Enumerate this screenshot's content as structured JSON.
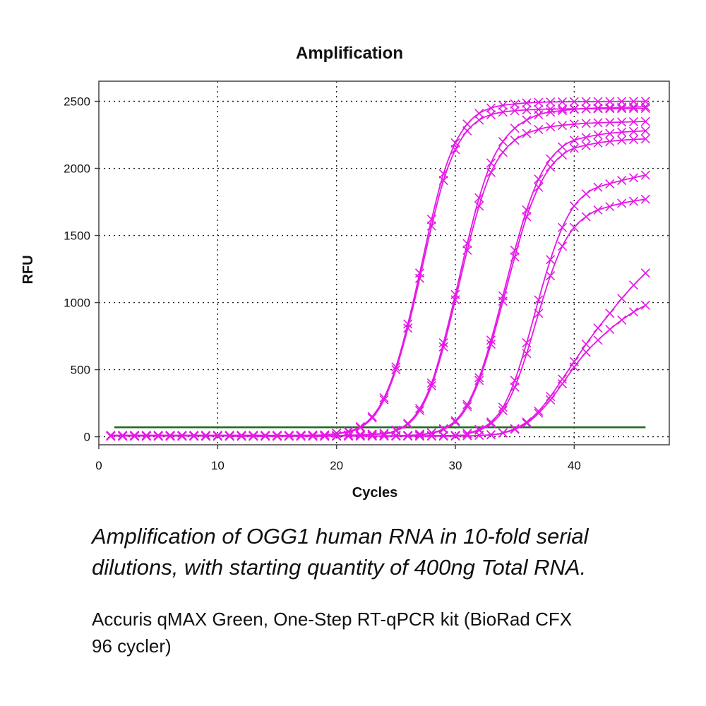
{
  "chart_data": {
    "type": "line",
    "title": "Amplification",
    "xlabel": "Cycles",
    "ylabel": "RFU",
    "xlim": [
      0,
      48
    ],
    "ylim": [
      -60,
      2650
    ],
    "xticks": [
      0,
      10,
      20,
      30,
      40
    ],
    "yticks": [
      0,
      500,
      1000,
      1500,
      2000,
      2500
    ],
    "grid": true,
    "threshold": 70,
    "threshold_color": "#1a6b1a",
    "series_color": "#e619e6",
    "series": [
      {
        "x": [
          1,
          4,
          7,
          10,
          13,
          16,
          19,
          21,
          22,
          23,
          24,
          25,
          26,
          27,
          28,
          29,
          30,
          31,
          32,
          33,
          34,
          35,
          36,
          37,
          38,
          40,
          42,
          44,
          46
        ],
        "values": [
          10,
          10,
          10,
          10,
          10,
          10,
          14,
          40,
          75,
          150,
          290,
          520,
          840,
          1220,
          1620,
          1960,
          2190,
          2330,
          2410,
          2450,
          2470,
          2480,
          2488,
          2492,
          2495,
          2497,
          2498,
          2499,
          2500
        ]
      },
      {
        "x": [
          1,
          4,
          7,
          10,
          13,
          16,
          19,
          21,
          22,
          23,
          24,
          25,
          26,
          27,
          28,
          29,
          30,
          31,
          32,
          33,
          34,
          35,
          36,
          37,
          38,
          40,
          42,
          44,
          46
        ],
        "values": [
          10,
          10,
          10,
          10,
          10,
          10,
          13,
          36,
          68,
          140,
          275,
          500,
          810,
          1180,
          1570,
          1910,
          2140,
          2280,
          2360,
          2400,
          2420,
          2430,
          2436,
          2440,
          2442,
          2444,
          2445,
          2446,
          2447
        ]
      },
      {
        "x": [
          1,
          5,
          10,
          15,
          20,
          24,
          25,
          26,
          27,
          28,
          29,
          30,
          31,
          32,
          33,
          34,
          35,
          36,
          37,
          38,
          40,
          42,
          44,
          46
        ],
        "values": [
          5,
          5,
          5,
          5,
          8,
          25,
          50,
          100,
          210,
          400,
          700,
          1060,
          1440,
          1780,
          2040,
          2200,
          2300,
          2360,
          2400,
          2420,
          2440,
          2450,
          2455,
          2460
        ]
      },
      {
        "x": [
          1,
          5,
          10,
          15,
          20,
          24,
          25,
          26,
          27,
          28,
          29,
          30,
          31,
          32,
          33,
          34,
          35,
          36,
          37,
          38,
          40,
          42,
          44,
          46
        ],
        "values": [
          5,
          5,
          5,
          5,
          8,
          22,
          45,
          92,
          195,
          380,
          670,
          1020,
          1390,
          1720,
          1970,
          2120,
          2210,
          2260,
          2290,
          2310,
          2330,
          2340,
          2345,
          2350
        ]
      },
      {
        "x": [
          1,
          10,
          20,
          26,
          28,
          29,
          30,
          31,
          32,
          33,
          34,
          35,
          36,
          37,
          38,
          39,
          40,
          42,
          44,
          46
        ],
        "values": [
          5,
          5,
          5,
          10,
          30,
          60,
          120,
          240,
          440,
          720,
          1050,
          1390,
          1690,
          1920,
          2070,
          2160,
          2210,
          2250,
          2270,
          2280
        ]
      },
      {
        "x": [
          1,
          10,
          20,
          26,
          28,
          29,
          30,
          31,
          32,
          33,
          34,
          35,
          36,
          37,
          38,
          39,
          40,
          42,
          44,
          46
        ],
        "values": [
          5,
          5,
          5,
          9,
          27,
          55,
          110,
          225,
          420,
          690,
          1010,
          1340,
          1640,
          1860,
          2010,
          2100,
          2150,
          2190,
          2210,
          2220
        ]
      },
      {
        "x": [
          1,
          10,
          20,
          30,
          31,
          32,
          33,
          34,
          35,
          36,
          37,
          38,
          39,
          40,
          41,
          42,
          44,
          46
        ],
        "values": [
          5,
          5,
          5,
          10,
          25,
          55,
          110,
          220,
          420,
          700,
          1020,
          1320,
          1560,
          1720,
          1810,
          1860,
          1910,
          1950
        ]
      },
      {
        "x": [
          1,
          10,
          20,
          30,
          31,
          32,
          33,
          34,
          35,
          36,
          37,
          38,
          39,
          40,
          41,
          42,
          44,
          46
        ],
        "values": [
          5,
          5,
          5,
          9,
          22,
          48,
          98,
          195,
          370,
          620,
          920,
          1200,
          1420,
          1560,
          1640,
          1690,
          1740,
          1770
        ]
      },
      {
        "x": [
          1,
          10,
          20,
          30,
          33,
          34,
          35,
          36,
          37,
          38,
          39,
          40,
          41,
          42,
          43,
          44,
          45,
          46
        ],
        "values": [
          5,
          5,
          5,
          5,
          15,
          30,
          60,
          110,
          190,
          300,
          430,
          560,
          690,
          810,
          920,
          1030,
          1130,
          1220
        ]
      },
      {
        "x": [
          1,
          10,
          20,
          30,
          33,
          34,
          35,
          36,
          37,
          38,
          39,
          40,
          41,
          42,
          43,
          44,
          45,
          46
        ],
        "values": [
          5,
          5,
          5,
          5,
          14,
          28,
          55,
          100,
          175,
          275,
          395,
          520,
          630,
          720,
          800,
          870,
          930,
          980
        ]
      }
    ]
  },
  "caption": {
    "line1": "Amplification of OGG1 human RNA in 10-fold serial",
    "line2": "dilutions, with starting quantity of 400ng Total RNA."
  },
  "note": {
    "line1": "Accuris qMAX Green, One-Step RT-qPCR kit (BioRad CFX",
    "line2": "96 cycler)"
  }
}
